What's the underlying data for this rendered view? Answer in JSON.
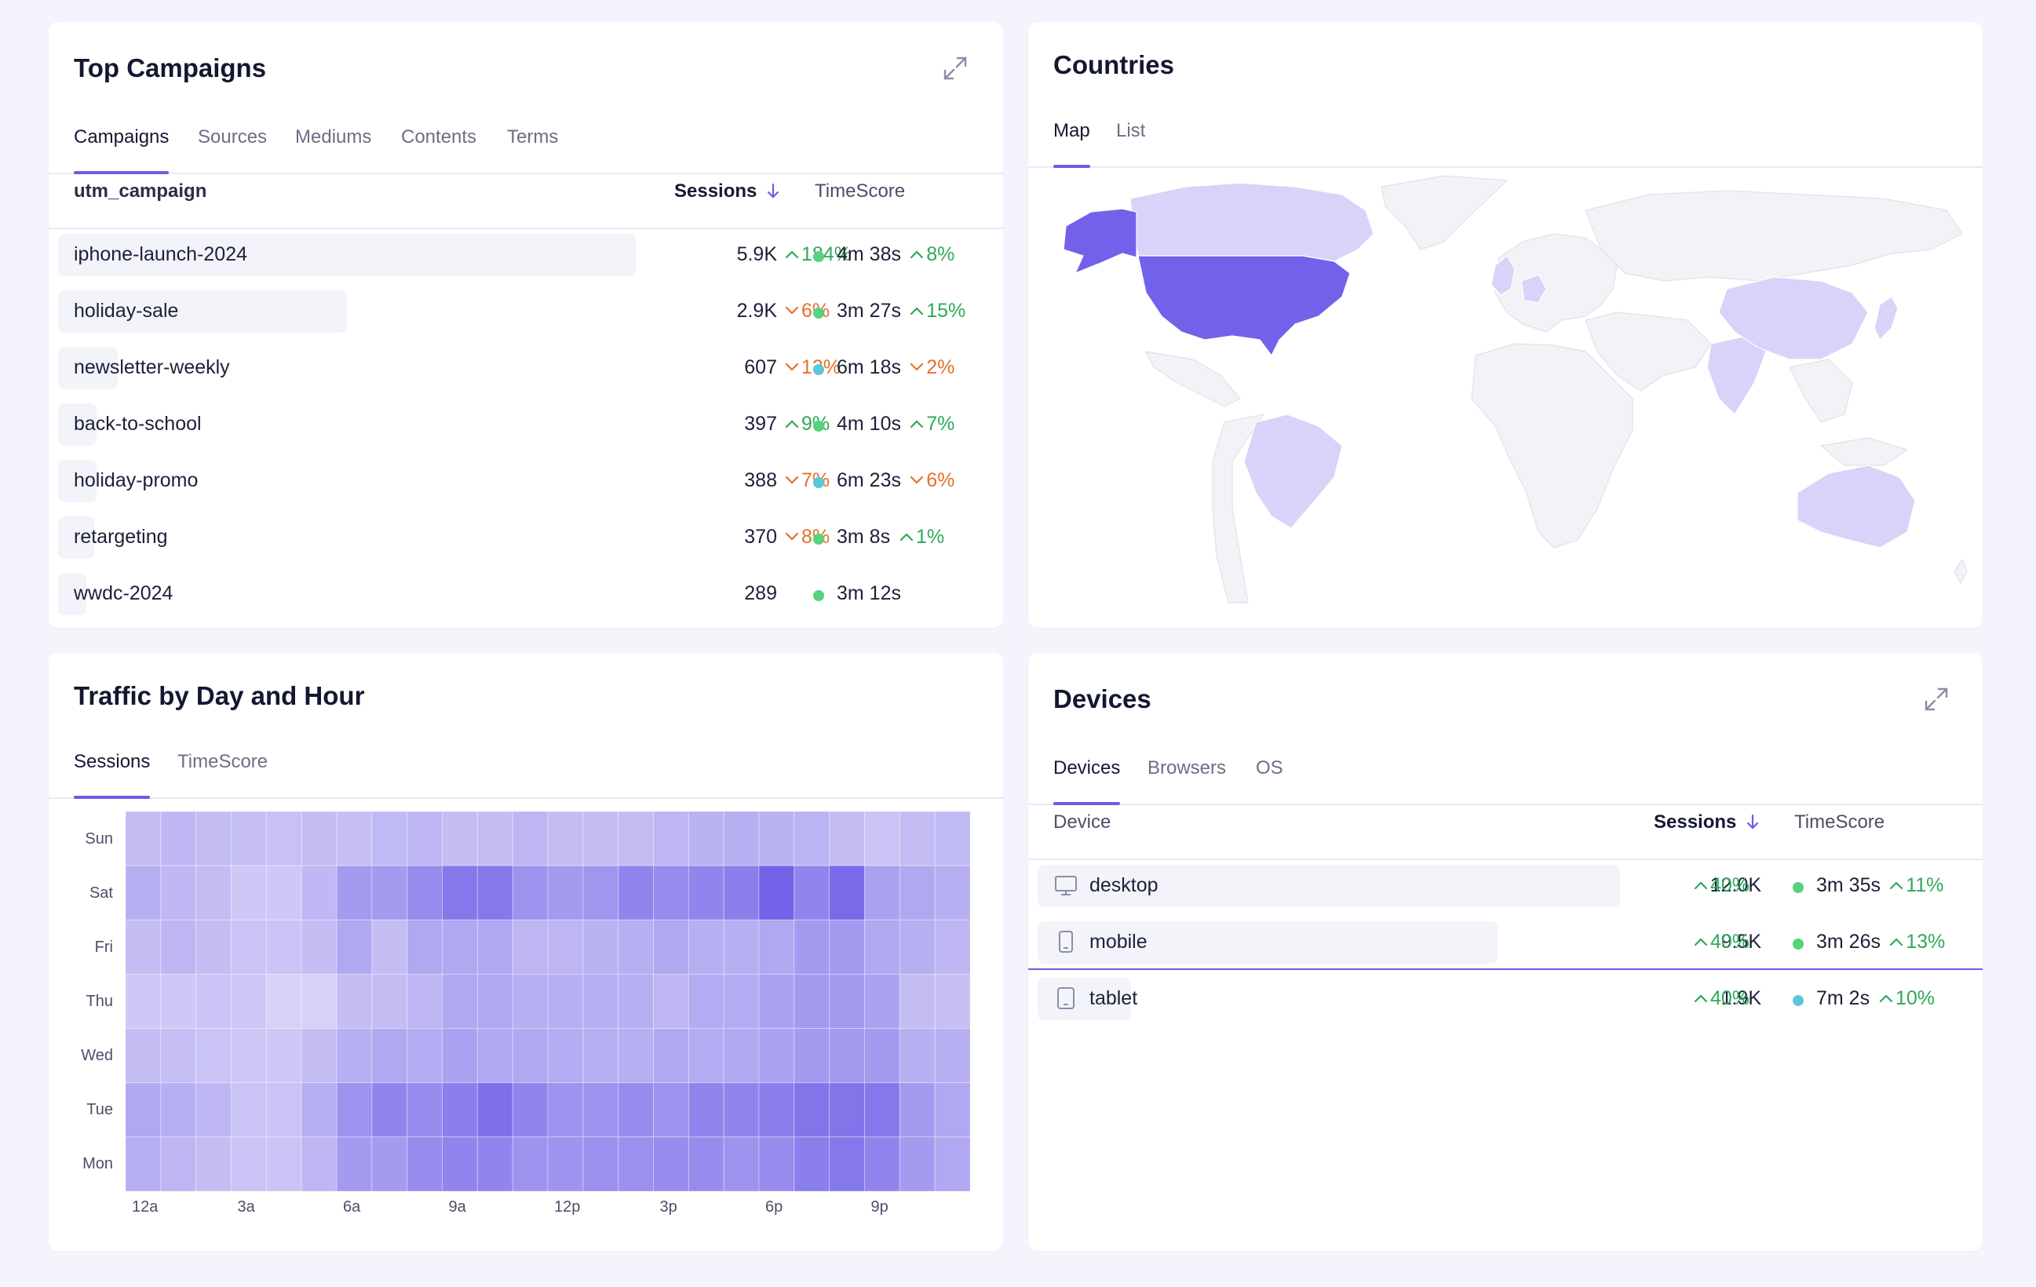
{
  "campaigns": {
    "title": "Top Campaigns",
    "tabs": [
      "Campaigns",
      "Sources",
      "Mediums",
      "Contents",
      "Terms"
    ],
    "active_tab": 0,
    "columns": {
      "name": "utm_campaign",
      "sessions": "Sessions",
      "sort_icon": "arrow-down-icon",
      "timescore": "TimeScore"
    },
    "rows": [
      {
        "name": "iphone-launch-2024",
        "share": 1.0,
        "sessions": "5.9K",
        "s_delta": "184%",
        "s_dir": "up",
        "dot": "#57d27f",
        "time": "4m 38s",
        "t_delta": "8%",
        "t_dir": "up"
      },
      {
        "name": "holiday-sale",
        "share": 0.5,
        "sessions": "2.9K",
        "s_delta": "6%",
        "s_dir": "down",
        "dot": "#57d27f",
        "time": "3m 27s",
        "t_delta": "15%",
        "t_dir": "up"
      },
      {
        "name": "newsletter-weekly",
        "share": 0.103,
        "sessions": "607",
        "s_delta": "13%",
        "s_dir": "down",
        "dot": "#5cc7d9",
        "time": "6m 18s",
        "t_delta": "2%",
        "t_dir": "down"
      },
      {
        "name": "back-to-school",
        "share": 0.067,
        "sessions": "397",
        "s_delta": "9%",
        "s_dir": "up",
        "dot": "#57d27f",
        "time": "4m 10s",
        "t_delta": "7%",
        "t_dir": "up"
      },
      {
        "name": "holiday-promo",
        "share": 0.066,
        "sessions": "388",
        "s_delta": "7%",
        "s_dir": "down",
        "dot": "#5cc7d9",
        "time": "6m 23s",
        "t_delta": "6%",
        "t_dir": "down"
      },
      {
        "name": "retargeting",
        "share": 0.063,
        "sessions": "370",
        "s_delta": "8%",
        "s_dir": "down",
        "dot": "#57d27f",
        "time": "3m 8s",
        "t_delta": "1%",
        "t_dir": "up"
      },
      {
        "name": "wwdc-2024",
        "share": 0.049,
        "sessions": "289",
        "s_delta": "",
        "s_dir": "",
        "dot": "#57d27f",
        "time": "3m 12s",
        "t_delta": "",
        "t_dir": ""
      }
    ]
  },
  "countries": {
    "title": "Countries",
    "tabs": [
      "Map",
      "List"
    ],
    "active_tab": 0,
    "colors": {
      "top": "#7262ea",
      "mid": "#d8d3f8",
      "base": "#f3f3f7",
      "border": "#e0e1ea"
    }
  },
  "heatmap": {
    "title": "Traffic by Day and Hour",
    "tabs": [
      "Sessions",
      "TimeScore"
    ],
    "active_tab": 0,
    "days": [
      "Sun",
      "Sat",
      "Fri",
      "Thu",
      "Wed",
      "Tue",
      "Mon"
    ],
    "x_ticks": [
      "12a",
      "3a",
      "6a",
      "9a",
      "12p",
      "3p",
      "6p",
      "9p"
    ],
    "accent": "#6c5ce7",
    "levels": [
      [
        0.3,
        0.33,
        0.3,
        0.28,
        0.27,
        0.3,
        0.28,
        0.32,
        0.34,
        0.3,
        0.3,
        0.35,
        0.3,
        0.3,
        0.3,
        0.35,
        0.38,
        0.4,
        0.38,
        0.36,
        0.3,
        0.25,
        0.3,
        0.32
      ],
      [
        0.4,
        0.33,
        0.3,
        0.22,
        0.22,
        0.33,
        0.55,
        0.55,
        0.65,
        0.8,
        0.8,
        0.6,
        0.55,
        0.58,
        0.7,
        0.65,
        0.7,
        0.75,
        0.95,
        0.7,
        0.9,
        0.5,
        0.45,
        0.4
      ],
      [
        0.3,
        0.35,
        0.3,
        0.25,
        0.25,
        0.3,
        0.45,
        0.3,
        0.45,
        0.45,
        0.45,
        0.35,
        0.35,
        0.38,
        0.4,
        0.45,
        0.4,
        0.4,
        0.45,
        0.55,
        0.55,
        0.45,
        0.4,
        0.35
      ],
      [
        0.22,
        0.22,
        0.25,
        0.22,
        0.15,
        0.15,
        0.3,
        0.3,
        0.35,
        0.45,
        0.45,
        0.4,
        0.4,
        0.4,
        0.4,
        0.35,
        0.42,
        0.42,
        0.5,
        0.55,
        0.55,
        0.5,
        0.3,
        0.28
      ],
      [
        0.3,
        0.28,
        0.25,
        0.22,
        0.22,
        0.3,
        0.4,
        0.45,
        0.42,
        0.5,
        0.45,
        0.45,
        0.42,
        0.4,
        0.4,
        0.45,
        0.42,
        0.45,
        0.5,
        0.55,
        0.55,
        0.55,
        0.4,
        0.4
      ],
      [
        0.45,
        0.4,
        0.35,
        0.25,
        0.25,
        0.4,
        0.6,
        0.7,
        0.65,
        0.75,
        0.85,
        0.7,
        0.6,
        0.6,
        0.65,
        0.6,
        0.7,
        0.7,
        0.75,
        0.82,
        0.82,
        0.8,
        0.55,
        0.45
      ],
      [
        0.4,
        0.35,
        0.3,
        0.25,
        0.25,
        0.35,
        0.55,
        0.55,
        0.65,
        0.7,
        0.7,
        0.6,
        0.6,
        0.62,
        0.62,
        0.65,
        0.65,
        0.6,
        0.65,
        0.75,
        0.8,
        0.7,
        0.55,
        0.45
      ]
    ]
  },
  "devices": {
    "title": "Devices",
    "tabs": [
      "Devices",
      "Browsers",
      "OS"
    ],
    "active_tab": 0,
    "columns": {
      "name": "Device",
      "sessions": "Sessions",
      "sort_icon": "arrow-down-icon",
      "timescore": "TimeScore"
    },
    "rows": [
      {
        "name": "desktop",
        "icon": "desktop-icon",
        "share": 1.0,
        "sessions": "12.0K",
        "s_delta": "40%",
        "s_dir": "up",
        "dot": "#57d27f",
        "time": "3m 35s",
        "t_delta": "11%",
        "t_dir": "up"
      },
      {
        "name": "mobile",
        "icon": "mobile-icon",
        "share": 0.79,
        "sessions": "9.5K",
        "s_delta": "40%",
        "s_dir": "up",
        "dot": "#57d27f",
        "time": "3m 26s",
        "t_delta": "13%",
        "t_dir": "up"
      },
      {
        "name": "tablet",
        "icon": "tablet-icon",
        "share": 0.16,
        "sessions": "1.9K",
        "s_delta": "40%",
        "s_dir": "up",
        "dot": "#5cc7d9",
        "time": "7m 2s",
        "t_delta": "10%",
        "t_dir": "up"
      }
    ],
    "hovered_row": 1
  }
}
